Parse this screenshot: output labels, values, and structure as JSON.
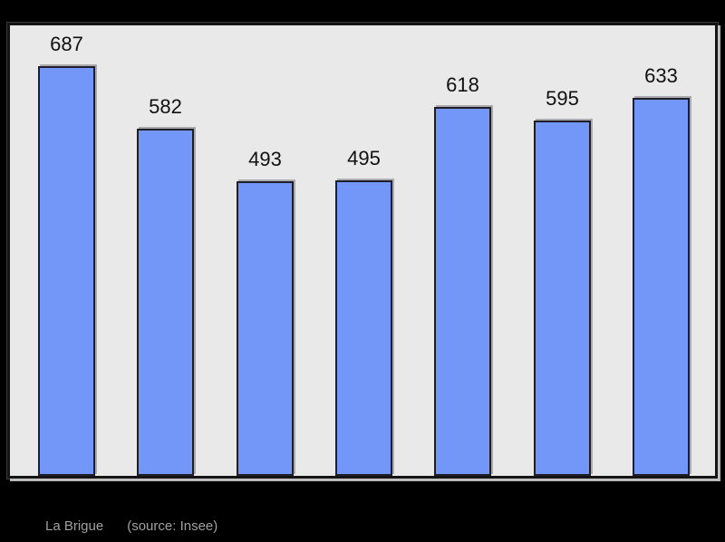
{
  "page": {
    "background_color": "#000000"
  },
  "chart_data": {
    "type": "bar",
    "values": [
      687,
      582,
      493,
      495,
      618,
      595,
      633
    ],
    "data_labels": [
      "687",
      "582",
      "493",
      "495",
      "618",
      "595",
      "633"
    ],
    "title": "",
    "xlabel": "",
    "ylabel": "",
    "ylim": [
      0,
      756
    ],
    "grid": false,
    "legend": false,
    "x_tick_labels_visible": false,
    "y_tick_labels_visible": false,
    "bar_color": "#7397f9",
    "bar_border_color": "#1e1e28",
    "plot_background_color": "#e9e9e9",
    "panel_border_color": "#141414",
    "label_color": "#111111"
  },
  "footer": {
    "commune": "La Brigue",
    "source": "(source: Insee)",
    "text_color": "#a0a0a0"
  }
}
